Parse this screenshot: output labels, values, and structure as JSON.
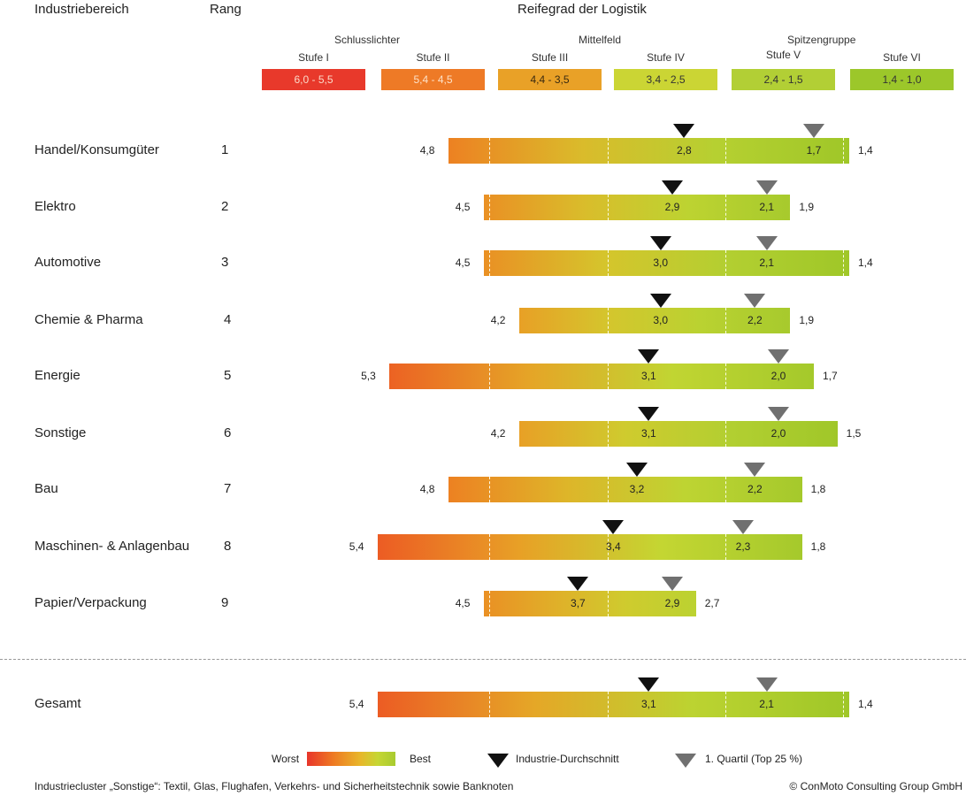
{
  "chart_data": {
    "type": "bar",
    "subtype": "floating-range-bar",
    "title": "Reifegrad der Logistik",
    "column_headers": {
      "industry": "Industriebereich",
      "rank": "Rang",
      "chart": "Reifegrad der Logistik"
    },
    "scale": {
      "min": 1.0,
      "max": 6.0,
      "direction": "reversed (6,0 worst left, 1,0 best right)"
    },
    "groups": [
      {
        "label": "Schlusslichter",
        "stages": [
          "Stufe I",
          "Stufe II"
        ]
      },
      {
        "label": "Mittelfeld",
        "stages": [
          "Stufe III",
          "Stufe IV"
        ]
      },
      {
        "label": "Spitzengruppe",
        "stages": [
          "Stufe V",
          "Stufe VI"
        ]
      }
    ],
    "stages": [
      {
        "label": "Stufe I",
        "range": "6,0 - 5,5",
        "from": 6.0,
        "to": 5.5,
        "color": "#e8392b",
        "text_color": "#fbd9c8"
      },
      {
        "label": "Stufe II",
        "range": "5,4 - 4,5",
        "from": 5.4,
        "to": 4.5,
        "color": "#ee7a26",
        "text_color": "#fde2c8"
      },
      {
        "label": "Stufe III",
        "range": "4,4 - 3,5",
        "from": 4.4,
        "to": 3.5,
        "color": "#e9a127",
        "text_color": "#3a2a10"
      },
      {
        "label": "Stufe IV",
        "range": "3,4 - 2,5",
        "from": 3.4,
        "to": 2.5,
        "color": "#cbd534",
        "text_color": "#333"
      },
      {
        "label": "Stufe V",
        "range": "2,4 - 1,5",
        "from": 2.4,
        "to": 1.5,
        "color": "#b2cf35",
        "text_color": "#333"
      },
      {
        "label": "Stufe VI",
        "range": "1,4 - 1,0",
        "from": 1.4,
        "to": 1.0,
        "color": "#9cc72a",
        "text_color": "#333"
      }
    ],
    "stage_boundaries": [
      4.45,
      3.45,
      2.45,
      1.45
    ],
    "rows": [
      {
        "industry": "Handel/Konsumgüter",
        "rank": "1",
        "worst": 4.8,
        "best": 1.4,
        "average": 2.8,
        "quartile1": 1.7,
        "worst_label": "4,8",
        "best_label": "1,4",
        "average_label": "2,8",
        "quartile1_label": "1,7"
      },
      {
        "industry": "Elektro",
        "rank": "2",
        "worst": 4.5,
        "best": 1.9,
        "average": 2.9,
        "quartile1": 2.1,
        "worst_label": "4,5",
        "best_label": "1,9",
        "average_label": "2,9",
        "quartile1_label": "2,1"
      },
      {
        "industry": "Automotive",
        "rank": "3",
        "worst": 4.5,
        "best": 1.4,
        "average": 3.0,
        "quartile1": 2.1,
        "worst_label": "4,5",
        "best_label": "1,4",
        "average_label": "3,0",
        "quartile1_label": "2,1"
      },
      {
        "industry": "Chemie & Pharma",
        "rank": "4",
        "worst": 4.2,
        "best": 1.9,
        "average": 3.0,
        "quartile1": 2.2,
        "worst_label": "4,2",
        "best_label": "1,9",
        "average_label": "3,0",
        "quartile1_label": "2,2"
      },
      {
        "industry": "Energie",
        "rank": "5",
        "worst": 5.3,
        "best": 1.7,
        "average": 3.1,
        "quartile1": 2.0,
        "worst_label": "5,3",
        "best_label": "1,7",
        "average_label": "3,1",
        "quartile1_label": "2,0"
      },
      {
        "industry": "Sonstige",
        "rank": "6",
        "worst": 4.2,
        "best": 1.5,
        "average": 3.1,
        "quartile1": 2.0,
        "worst_label": "4,2",
        "best_label": "1,5",
        "average_label": "3,1",
        "quartile1_label": "2,0"
      },
      {
        "industry": "Bau",
        "rank": "7",
        "worst": 4.8,
        "best": 1.8,
        "average": 3.2,
        "quartile1": 2.2,
        "worst_label": "4,8",
        "best_label": "1,8",
        "average_label": "3,2",
        "quartile1_label": "2,2"
      },
      {
        "industry": "Maschinen- & Anlagenbau",
        "rank": "8",
        "worst": 5.4,
        "best": 1.8,
        "average": 3.4,
        "quartile1": 2.3,
        "worst_label": "5,4",
        "best_label": "1,8",
        "average_label": "3,4",
        "quartile1_label": "2,3"
      },
      {
        "industry": "Papier/Verpackung",
        "rank": "9",
        "worst": 4.5,
        "best": 2.7,
        "average": 3.7,
        "quartile1": 2.9,
        "worst_label": "4,5",
        "best_label": "2,7",
        "average_label": "3,7",
        "quartile1_label": "2,9"
      }
    ],
    "total": {
      "industry": "Gesamt",
      "rank": "",
      "worst": 5.4,
      "best": 1.4,
      "average": 3.1,
      "quartile1": 2.1,
      "worst_label": "5,4",
      "best_label": "1,4",
      "average_label": "3,1",
      "quartile1_label": "2,1"
    },
    "legend": {
      "gradient_worst": "Worst",
      "gradient_best": "Best",
      "average_marker": "Industrie-Durchschnitt",
      "quartile_marker": "1. Quartil (Top 25 %)",
      "placement": "bottom"
    },
    "colors": {
      "average_marker": "#111111",
      "quartile_marker": "#707070"
    }
  },
  "footer": {
    "note": "Industriecluster „Sonstige“: Textil, Glas, Flughafen, Verkehrs- und Sicherheitstechnik sowie Banknoten",
    "copyright": "© ConMoto Consulting Group GmbH"
  }
}
